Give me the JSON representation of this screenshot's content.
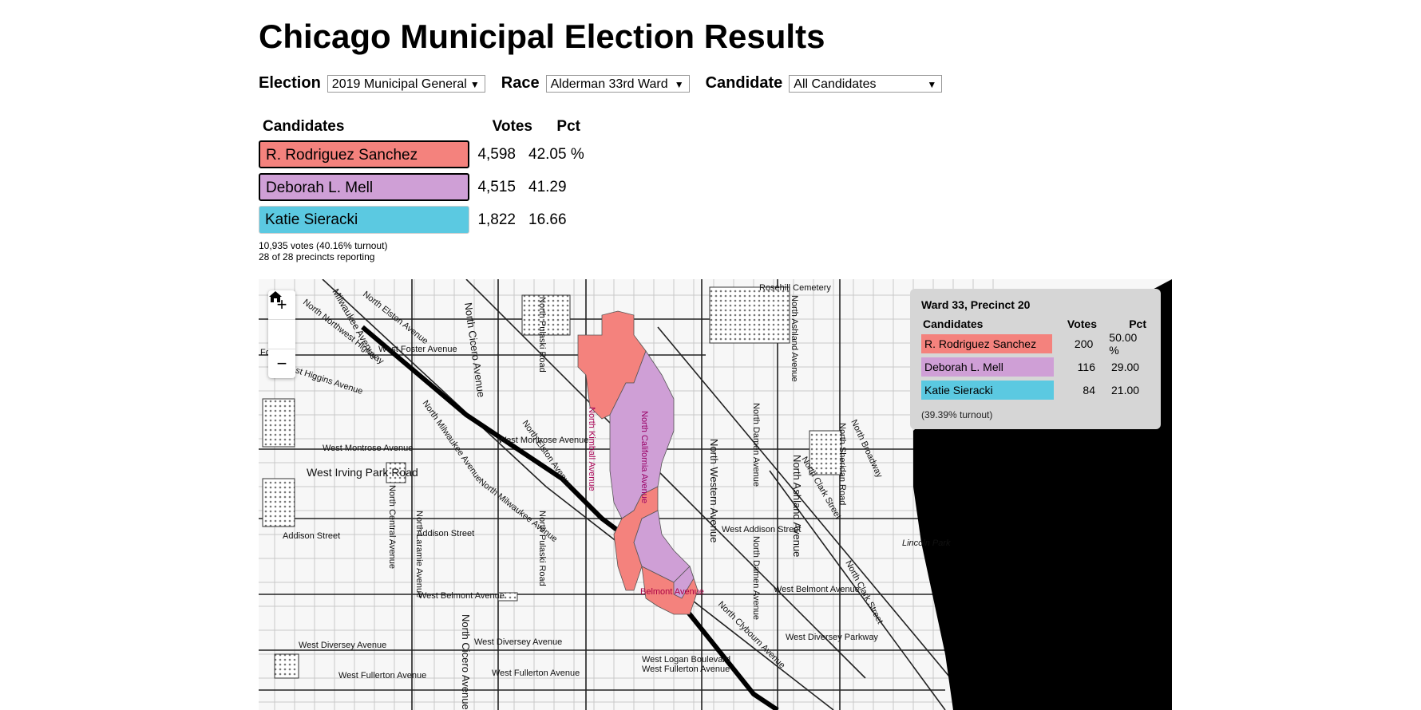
{
  "title": "Chicago Municipal Election Results",
  "controls": {
    "election_label": "Election",
    "election_value": "2019 Municipal General",
    "race_label": "Race",
    "race_value": "Alderman 33rd Ward",
    "candidate_label": "Candidate",
    "candidate_value": "All Candidates"
  },
  "results": {
    "headers": {
      "candidates": "Candidates",
      "votes": "Votes",
      "pct": "Pct"
    },
    "rows": [
      {
        "name": "R. Rodriguez Sanchez",
        "votes": "4,598",
        "pct": "42.05 %",
        "color": "#f4827d"
      },
      {
        "name": "Deborah L. Mell",
        "votes": "4,515",
        "pct": "41.29",
        "color": "#cf9fd6"
      },
      {
        "name": "Katie Sieracki",
        "votes": "1,822",
        "pct": "16.66",
        "color": "#5bc9e1"
      }
    ],
    "total_line": "10,935 votes (40.16% turnout)",
    "precincts_line": "28 of 28 precincts reporting"
  },
  "map": {
    "zoom_in": "+",
    "home_icon": "home-icon",
    "zoom_out": "−",
    "labels": {
      "rosehill": "Rosehill Cemetery",
      "irving": "West Irving Park Road",
      "montrose1": "West Montrose Avenue",
      "montrose2": "West Montrose Avenue",
      "foster": "West Foster Avenue",
      "higgins": "West Higgins Avenue",
      "addison1": "Addison Street",
      "addison2": "Addison Street",
      "addison3": "West Addison Street",
      "belmont1": "West Belmont Avenue",
      "belmont2": "West Belmont Avenue",
      "diversey1": "West Diversey Avenue",
      "diversey2": "West Diversey Avenue",
      "diversey3": "West Diversey Parkway",
      "fullerton1": "West Fullerton Avenue",
      "fullerton2": "West Fullerton Avenue",
      "fullerton3": "West Fullerton Avenue",
      "logan": "West Logan Boulevard",
      "lincolnpark": "Lincoln Park",
      "cicero1": "North Cicero Avenue",
      "cicero2": "North Cicero Avenue",
      "western": "North Western Avenue",
      "ashland1": "North Ashland Avenue",
      "ashland2": "North Ashland Avenue",
      "damen1": "North Damen Avenue",
      "damen2": "North Damen Avenue",
      "pulaski1": "North Pulaski Road",
      "pulaski2": "North Pulaski Road",
      "central": "North Central Avenue",
      "laramie": "North Laramie Avenue",
      "milwaukee1": "North Milwaukee Avenue",
      "milwaukee2": "North Milwaukee Avenue",
      "elston1": "North Elston Avenue",
      "elston2": "North Elston Avenue",
      "clark1": "North Clark Street",
      "clark2": "North Clark Street",
      "clybourn": "North Clybourn Avenue",
      "broadway": "North Broadway",
      "sheridan": "North Sheridan Road",
      "nwhwy": "North Northwest Highway",
      "milwaukee_top": "Milwaukee Avenue",
      "kimball": "North Kimball Avenue",
      "california": "North California Avenue",
      "belmont_pct": "Belmont Avenue",
      "fo": "Fo"
    }
  },
  "tooltip": {
    "title": "Ward 33, Precinct 20",
    "headers": {
      "candidates": "Candidates",
      "votes": "Votes",
      "pct": "Pct"
    },
    "rows": [
      {
        "name": "R. Rodriguez Sanchez",
        "votes": "200",
        "pct": "50.00 %",
        "color": "#f4827d"
      },
      {
        "name": "Deborah L. Mell",
        "votes": "116",
        "pct": "29.00",
        "color": "#cf9fd6"
      },
      {
        "name": "Katie Sieracki",
        "votes": "84",
        "pct": "21.00",
        "color": "#5bc9e1"
      }
    ],
    "turnout": "(39.39% turnout)"
  }
}
